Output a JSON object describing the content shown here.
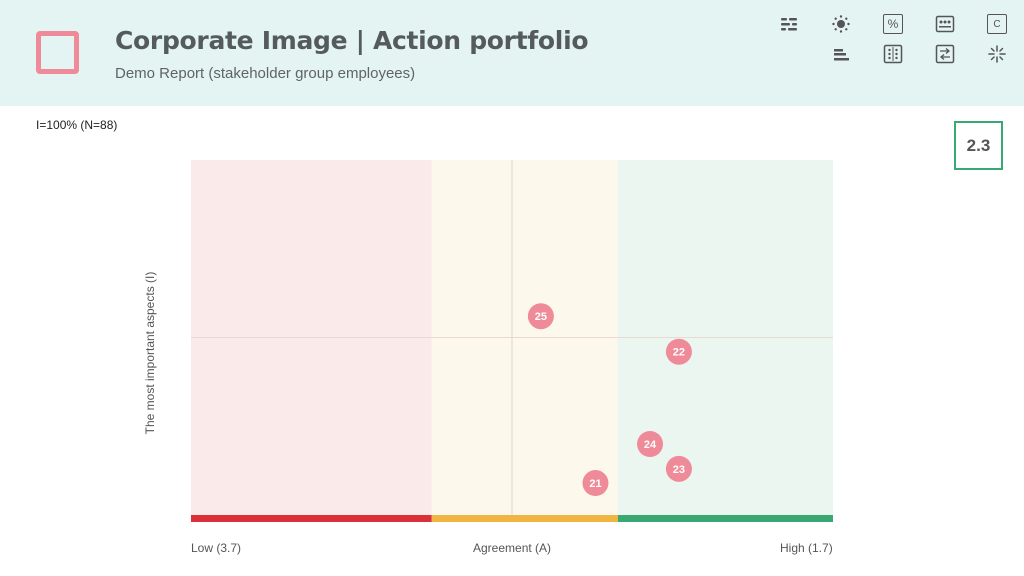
{
  "header": {
    "title": "Corporate Image | Action portfolio",
    "subtitle": "Demo Report (stakeholder group employees)"
  },
  "toolbar": {
    "icons": [
      "filter-icon",
      "brightness-icon",
      "percent-icon",
      "dots-panel-icon",
      "c-box-icon",
      "bar-align-icon",
      "grid-dots-icon",
      "swap-arrows-icon",
      "sparkle-icon"
    ],
    "percent_symbol": "%",
    "c_symbol": "C"
  },
  "info": {
    "sample": "I=100% (N=88)"
  },
  "score": {
    "value": "2.3"
  },
  "chart_data": {
    "type": "scatter",
    "xlabel": "Agreement (A)",
    "ylabel": "The most important aspects (I)",
    "x_low_label": "Low (3.7)",
    "x_high_label": "High (1.7)",
    "xlim": [
      3.7,
      1.7
    ],
    "ylim": [
      0,
      1
    ],
    "zones": [
      {
        "name": "low",
        "from": 3.7,
        "to": 2.95,
        "color": "#d9303a",
        "bg": "#faeaea"
      },
      {
        "name": "medium",
        "from": 2.95,
        "to": 2.37,
        "color": "#f1b541",
        "bg": "#fdf8ec"
      },
      {
        "name": "high",
        "from": 2.37,
        "to": 1.7,
        "color": "#3aa873",
        "bg": "#eaf6ef"
      }
    ],
    "crosshair": {
      "x": 2.7,
      "y": 0.5
    },
    "points": [
      {
        "label": "25",
        "x": 2.61,
        "y": 0.56
      },
      {
        "label": "22",
        "x": 2.18,
        "y": 0.46
      },
      {
        "label": "24",
        "x": 2.27,
        "y": 0.2
      },
      {
        "label": "23",
        "x": 2.18,
        "y": 0.13
      },
      {
        "label": "21",
        "x": 2.44,
        "y": 0.09
      }
    ],
    "point_color": "#ef8a98"
  }
}
